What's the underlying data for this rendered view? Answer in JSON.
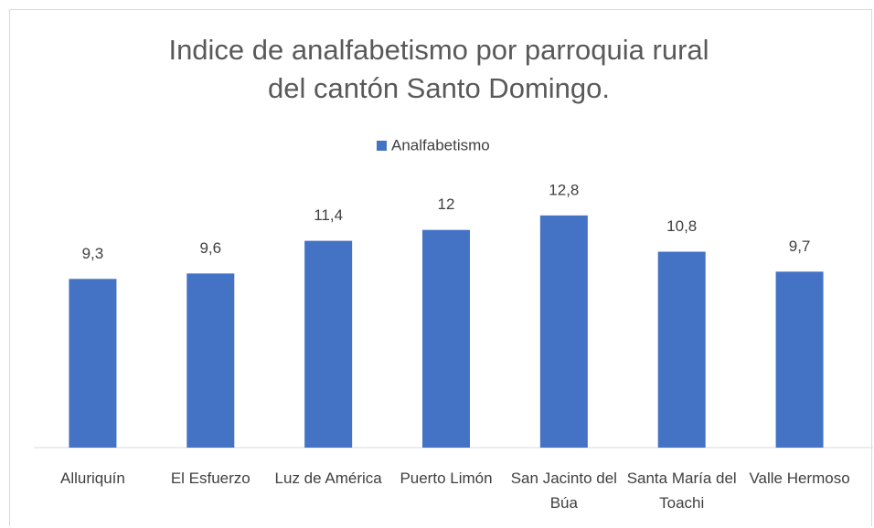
{
  "chart_data": {
    "type": "bar",
    "title": "Indice de analfabetismo por parroquia rural del cantón Santo Domingo.",
    "categories": [
      "Alluriquín",
      "El Esfuerzo",
      "Luz de América",
      "Puerto Limón",
      "San Jacinto del Búa",
      "Santa María del Toachi",
      "Valle Hermoso"
    ],
    "series": [
      {
        "name": "Analfabetismo",
        "color": "#4472c4",
        "values": [
          9.3,
          9.6,
          11.4,
          12,
          12.8,
          10.8,
          9.7
        ],
        "value_labels": [
          "9,3",
          "9,6",
          "11,4",
          "12",
          "12,8",
          "10,8",
          "9,7"
        ]
      }
    ],
    "ylim": [
      0,
      14
    ]
  }
}
